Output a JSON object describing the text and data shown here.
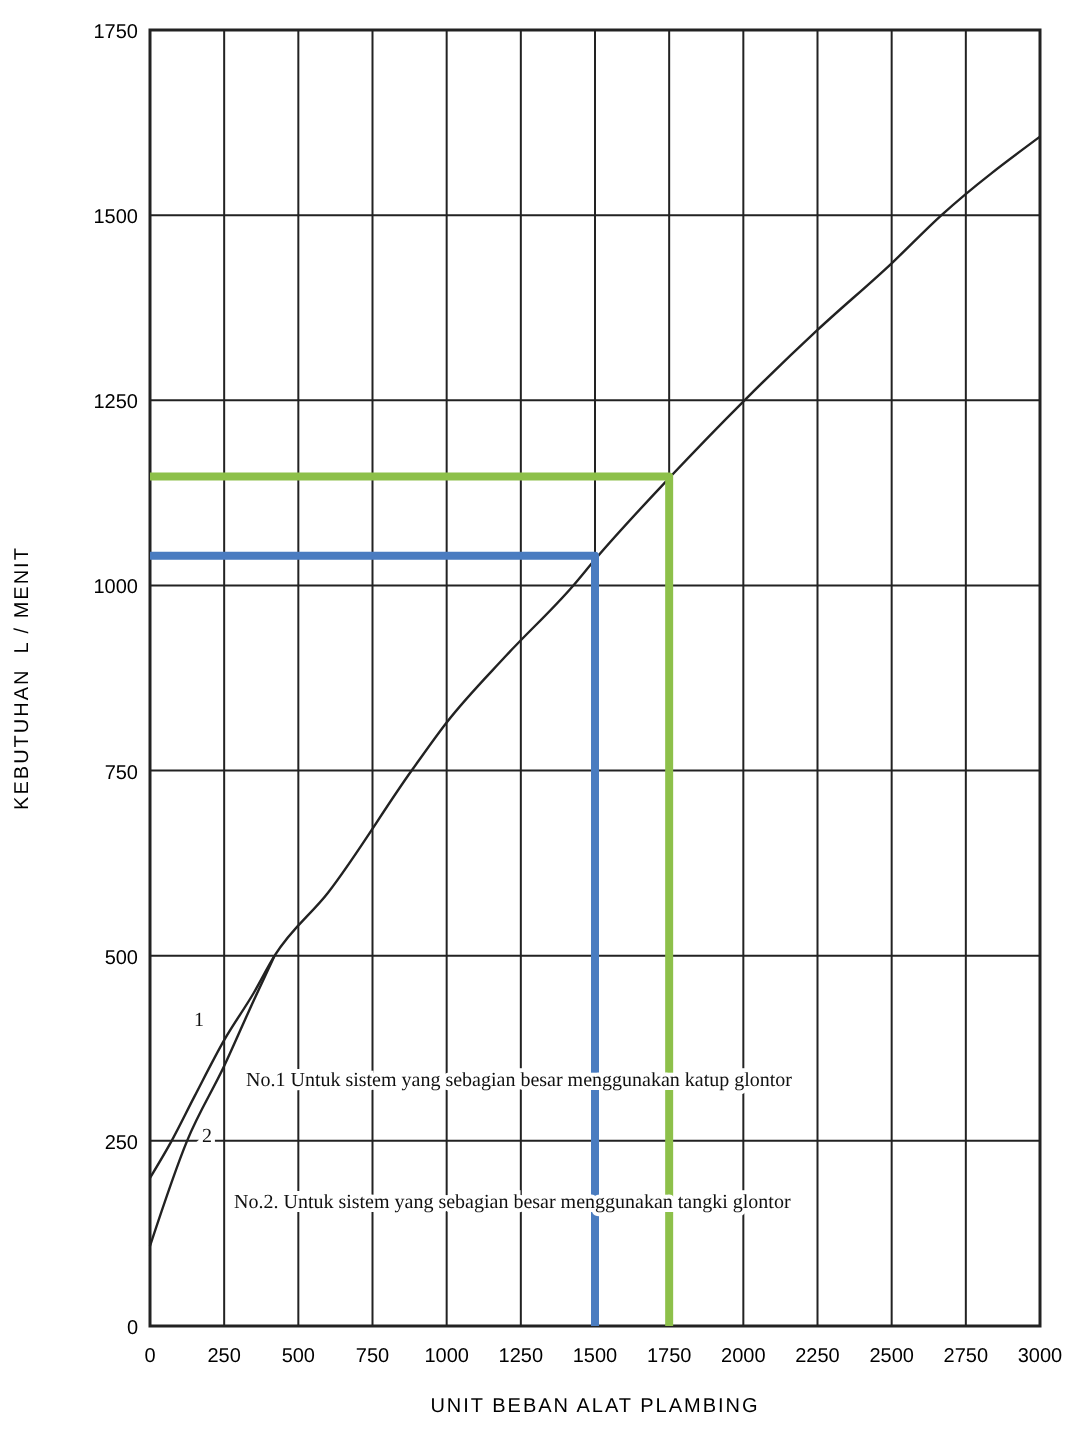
{
  "chart_data": {
    "type": "line",
    "xlabel": "UNIT BEBAN ALAT PLAMBING",
    "ylabel": "KEBUTUHAN  L / MENIT",
    "xlim": [
      0,
      3000
    ],
    "xticks": [
      0,
      250,
      500,
      750,
      1000,
      1250,
      1500,
      1750,
      2000,
      2250,
      2500,
      2750,
      3000
    ],
    "ylim": [
      0,
      1750
    ],
    "yticks": [
      0,
      250,
      500,
      750,
      1000,
      1250,
      1500,
      1750
    ],
    "grid": true,
    "marker": "none",
    "line_style": "solid",
    "series": [
      {
        "color": "#222222",
        "x": [
          0,
          73,
          150,
          250,
          350,
          420,
          600,
          882,
          1000,
          1200,
          1427,
          1500,
          1750,
          2004,
          2250,
          2500,
          2668,
          3000
        ],
        "values": [
          200,
          250,
          310,
          386,
          450,
          500,
          585,
          750,
          815,
          905,
          1000,
          1035,
          1145,
          1250,
          1345,
          1435,
          1500,
          1606
        ]
      },
      {
        "color": "#222222",
        "x": [
          0,
          125,
          250,
          350,
          420
        ],
        "values": [
          108,
          250,
          351,
          440,
          500
        ]
      },
      {
        "color": "#4a7cc0",
        "x": [
          0,
          1500,
          1500
        ],
        "values": [
          1040,
          1040,
          0
        ]
      },
      {
        "color": "#8dc04a",
        "x": [
          0,
          1750,
          1750
        ],
        "values": [
          1147,
          1147,
          0
        ]
      }
    ],
    "annotations": [
      "1",
      "2",
      "No.1 Untuk sistem yang sebagian besar menggunakan katup glontor",
      "No.2. Untuk sistem yang sebagian besar menggunakan tangki glontor"
    ]
  }
}
